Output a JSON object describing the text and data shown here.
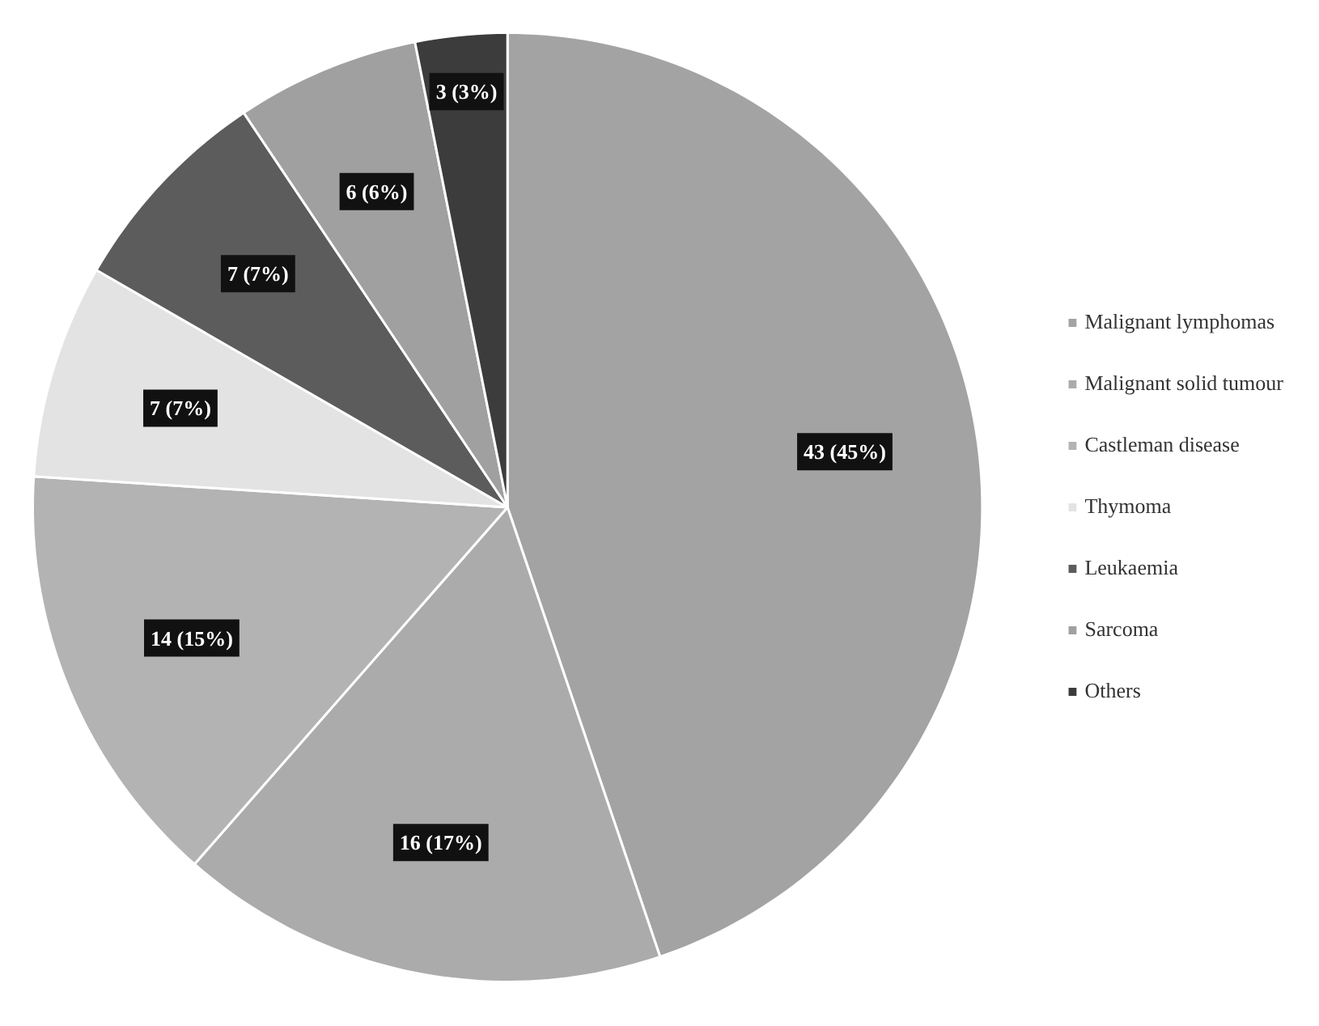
{
  "chart_data": {
    "type": "pie",
    "categories": [
      "Malignant lymphomas",
      "Malignant solid tumour",
      "Castleman disease",
      "Thymoma",
      "Leukaemia",
      "Sarcoma",
      "Others"
    ],
    "values": [
      43,
      16,
      14,
      7,
      7,
      6,
      3
    ],
    "colors": [
      "#a3a3a3",
      "#ababab",
      "#b3b3b3",
      "#e3e3e3",
      "#5c5c5c",
      "#a0a0a0",
      "#3c3c3c"
    ],
    "value_labels": [
      "43 (45%)",
      "16 (17%)",
      "14 (15%)",
      "7 (7%)",
      "7 (7%)",
      "6 (6%)",
      "3 (3%)"
    ],
    "legend": "right"
  }
}
